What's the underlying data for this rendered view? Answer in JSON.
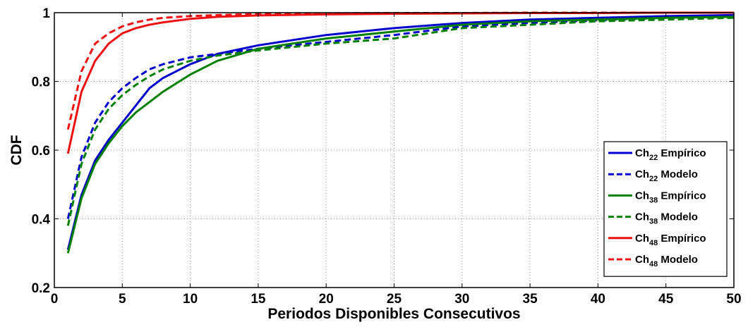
{
  "chart_data": {
    "type": "line",
    "title": "",
    "xlabel": "Periodos Disponibles Consecutivos",
    "ylabel": "CDF",
    "xlim": [
      0,
      50
    ],
    "ylim": [
      0.2,
      1
    ],
    "xticks": [
      0,
      5,
      10,
      15,
      20,
      25,
      30,
      35,
      40,
      45,
      50
    ],
    "yticks": [
      0.2,
      0.4,
      0.6,
      0.8,
      1
    ],
    "xtick_labels": [
      "0",
      "5",
      "10",
      "15",
      "20",
      "25",
      "30",
      "35",
      "40",
      "45",
      "50"
    ],
    "ytick_labels": [
      "0.2",
      "0.4",
      "0.6",
      "0.8",
      "1"
    ],
    "grid": true,
    "legend_position": "right",
    "series": [
      {
        "name": "Ch22 Empírico",
        "legend": {
          "prefix": "Ch",
          "sub": "22",
          "suffix": "Empírico"
        },
        "color": "#0000cc",
        "style": "solid",
        "x": [
          1,
          2,
          3,
          4,
          5,
          6,
          7,
          8,
          10,
          12,
          15,
          20,
          25,
          30,
          35,
          40,
          45,
          50
        ],
        "y": [
          0.31,
          0.47,
          0.57,
          0.63,
          0.68,
          0.73,
          0.78,
          0.81,
          0.85,
          0.88,
          0.905,
          0.935,
          0.955,
          0.97,
          0.98,
          0.985,
          0.99,
          0.993
        ]
      },
      {
        "name": "Ch22 Modelo",
        "legend": {
          "prefix": "Ch",
          "sub": "22",
          "suffix": "Modelo"
        },
        "color": "#0000cc",
        "style": "dashed",
        "x": [
          1,
          2,
          3,
          4,
          5,
          6,
          7,
          8,
          10,
          12,
          15,
          20,
          25,
          30,
          35,
          40,
          45,
          50
        ],
        "y": [
          0.4,
          0.58,
          0.68,
          0.74,
          0.78,
          0.81,
          0.835,
          0.85,
          0.87,
          0.88,
          0.895,
          0.915,
          0.935,
          0.96,
          0.97,
          0.978,
          0.985,
          0.99
        ]
      },
      {
        "name": "Ch38 Empírico",
        "legend": {
          "prefix": "Ch",
          "sub": "38",
          "suffix": "Empírico"
        },
        "color": "#008000",
        "style": "solid",
        "x": [
          1,
          2,
          3,
          4,
          5,
          6,
          7,
          8,
          10,
          12,
          15,
          20,
          25,
          30,
          35,
          40,
          45,
          50
        ],
        "y": [
          0.3,
          0.46,
          0.56,
          0.62,
          0.67,
          0.71,
          0.74,
          0.77,
          0.82,
          0.86,
          0.895,
          0.925,
          0.945,
          0.965,
          0.975,
          0.98,
          0.985,
          0.988
        ]
      },
      {
        "name": "Ch38 Modelo",
        "legend": {
          "prefix": "Ch",
          "sub": "38",
          "suffix": "Modelo"
        },
        "color": "#008000",
        "style": "dashed",
        "x": [
          1,
          2,
          3,
          4,
          5,
          6,
          7,
          8,
          10,
          12,
          15,
          20,
          25,
          30,
          35,
          40,
          45,
          50
        ],
        "y": [
          0.38,
          0.56,
          0.66,
          0.72,
          0.76,
          0.79,
          0.815,
          0.835,
          0.86,
          0.875,
          0.89,
          0.91,
          0.925,
          0.955,
          0.965,
          0.975,
          0.98,
          0.985
        ]
      },
      {
        "name": "Ch48 Empírico",
        "legend": {
          "prefix": "Ch",
          "sub": "48",
          "suffix": "Empírico"
        },
        "color": "#ee1111",
        "style": "solid",
        "x": [
          1,
          2,
          3,
          4,
          5,
          6,
          7,
          8,
          10,
          12,
          15,
          20,
          25,
          30,
          35,
          40,
          45,
          50
        ],
        "y": [
          0.59,
          0.77,
          0.86,
          0.91,
          0.94,
          0.955,
          0.965,
          0.972,
          0.982,
          0.988,
          0.992,
          0.995,
          0.997,
          0.998,
          0.999,
          0.999,
          1.0,
          1.0
        ]
      },
      {
        "name": "Ch48 Modelo",
        "legend": {
          "prefix": "Ch",
          "sub": "48",
          "suffix": "Modelo"
        },
        "color": "#ee1111",
        "style": "dashed",
        "x": [
          1,
          2,
          3,
          4,
          5,
          6,
          7,
          8,
          10,
          12,
          15,
          20,
          25,
          30,
          35,
          40,
          45,
          50
        ],
        "y": [
          0.66,
          0.83,
          0.91,
          0.94,
          0.96,
          0.972,
          0.98,
          0.985,
          0.99,
          0.993,
          0.996,
          0.998,
          0.999,
          0.999,
          1.0,
          1.0,
          1.0,
          1.0
        ]
      }
    ]
  }
}
